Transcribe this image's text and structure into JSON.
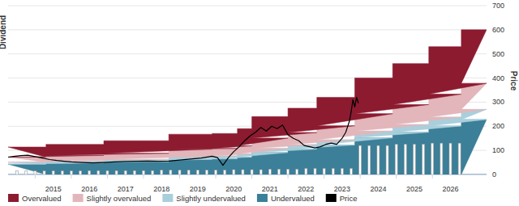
{
  "chart_data": {
    "type": "area",
    "y_label": "Price",
    "y2_label": "Dividend",
    "xlim": [
      2014.25,
      2027.5
    ],
    "xticks": [
      2015,
      2016,
      2017,
      2018,
      2019,
      2020,
      2021,
      2022,
      2023,
      2024,
      2025,
      2026
    ],
    "ylim": [
      0,
      700
    ],
    "yticks": [
      0,
      100,
      200,
      300,
      400,
      500,
      600,
      700
    ],
    "grid": true,
    "stacked": true,
    "legend": "bottom",
    "series": [
      {
        "name": "Undervalued",
        "color": "#3b7f98",
        "line_style": "step",
        "x": [
          2014.25,
          2015.3,
          2016.9,
          2018.7,
          2019.9,
          2020.6,
          2021.0,
          2022.0,
          2022.8,
          2023.85,
          2024.9,
          2025.9,
          2026.8
        ],
        "values": [
          43,
          48,
          53,
          63,
          65,
          72,
          91,
          105,
          122,
          152,
          175,
          201,
          228
        ]
      },
      {
        "name": "Slightly undervalued",
        "color": "#a9cfdc",
        "line_style": "step",
        "x": [
          2014.25,
          2015.3,
          2016.9,
          2018.7,
          2019.9,
          2020.6,
          2021.0,
          2022.0,
          2022.8,
          2023.85,
          2024.9,
          2025.9,
          2026.8
        ],
        "values": [
          8,
          9,
          10,
          12,
          12,
          13,
          17,
          19,
          22,
          28,
          32,
          37,
          42
        ]
      },
      {
        "name": "Slightly overvalued",
        "color": "#e2b6ba",
        "line_style": "step",
        "x": [
          2014.25,
          2015.3,
          2016.9,
          2018.7,
          2019.9,
          2020.6,
          2021.0,
          2022.0,
          2022.8,
          2023.85,
          2024.9,
          2025.9,
          2026.8
        ],
        "values": [
          21,
          22,
          25,
          30,
          31,
          34,
          43,
          50,
          58,
          72,
          83,
          95,
          108
        ]
      },
      {
        "name": "Overvalued",
        "color": "#8c1b30",
        "line_style": "step",
        "x": [
          2014.25,
          2015.3,
          2016.9,
          2018.7,
          2019.9,
          2020.6,
          2021.0,
          2022.0,
          2022.8,
          2023.85,
          2024.9,
          2025.9,
          2026.8
        ],
        "values": [
          42,
          46,
          52,
          62,
          62,
          71,
          89,
          101,
          118,
          148,
          170,
          197,
          222
        ]
      },
      {
        "type": "bar",
        "color": "#ffffff",
        "x": [
          2014.5,
          2014.75,
          2015.0,
          2015.25,
          2015.5,
          2015.75,
          2016.0,
          2016.25,
          2016.5,
          2016.75,
          2017.0,
          2017.25,
          2017.5,
          2017.75,
          2018.0,
          2018.25,
          2018.5,
          2018.75,
          2019.0,
          2019.25,
          2019.5,
          2019.75,
          2020.0,
          2020.25,
          2020.5,
          2020.75,
          2021.0,
          2021.25,
          2021.5,
          2021.75,
          2022.0,
          2022.25,
          2022.5,
          2022.75,
          2023.0,
          2023.25,
          2023.5,
          2023.75,
          2024.0,
          2024.25,
          2024.5,
          2024.75,
          2025.0,
          2025.25,
          2025.5,
          2025.75,
          2026.0,
          2026.25,
          2026.5,
          2026.75
        ],
        "values": [
          15,
          15,
          15,
          15,
          15,
          15,
          15,
          15,
          16,
          16,
          16,
          16,
          16,
          16,
          16,
          16,
          18,
          18,
          18,
          18,
          18,
          18,
          18,
          18,
          20,
          20,
          20,
          20,
          22,
          22,
          22,
          22,
          25,
          25,
          25,
          25,
          25,
          25,
          120,
          120,
          120,
          120,
          125,
          125,
          125,
          125,
          130,
          130,
          130,
          130
        ]
      },
      {
        "name": "Price",
        "type": "line",
        "color": "#000000",
        "x": [
          2014.25,
          2014.4,
          2014.6,
          2014.8,
          2015.0,
          2015.2,
          2015.4,
          2015.6,
          2015.8,
          2016.0,
          2016.3,
          2016.6,
          2016.9,
          2017.2,
          2017.5,
          2017.8,
          2018.1,
          2018.4,
          2018.7,
          2019.0,
          2019.3,
          2019.6,
          2019.9,
          2020.05,
          2020.2,
          2020.35,
          2020.5,
          2020.65,
          2020.8,
          2020.95,
          2021.1,
          2021.25,
          2021.4,
          2021.55,
          2021.7,
          2021.85,
          2022.0,
          2022.15,
          2022.3,
          2022.45,
          2022.6,
          2022.75,
          2022.9,
          2023.05,
          2023.2,
          2023.35,
          2023.5,
          2023.6,
          2023.7,
          2023.75,
          2023.8,
          2023.85,
          2023.9,
          2023.95
        ],
        "values": [
          72,
          75,
          78,
          80,
          74,
          68,
          62,
          58,
          55,
          52,
          50,
          48,
          50,
          52,
          54,
          55,
          56,
          55,
          56,
          60,
          64,
          68,
          76,
          70,
          38,
          70,
          95,
          115,
          140,
          160,
          175,
          195,
          180,
          200,
          190,
          205,
          165,
          150,
          140,
          120,
          115,
          110,
          115,
          125,
          130,
          125,
          150,
          175,
          220,
          260,
          310,
          280,
          320,
          295
        ]
      }
    ]
  }
}
